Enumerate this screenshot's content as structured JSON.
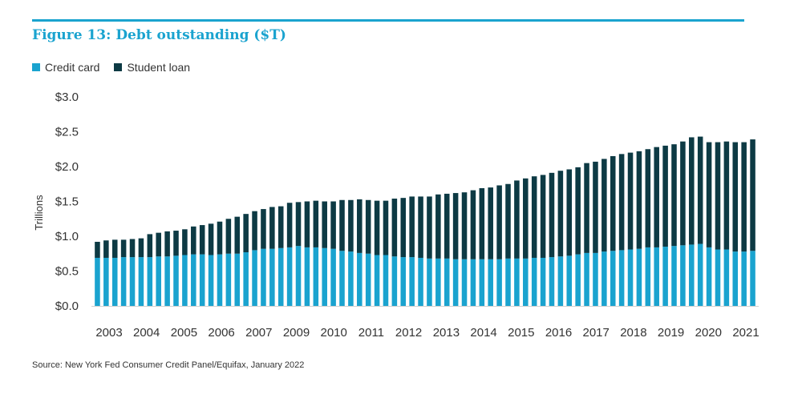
{
  "title": "Figure 13: Debt outstanding ($T)",
  "source": "Source: New York Fed Consumer Credit Panel/Equifax, January 2022",
  "legend": [
    {
      "label": "Credit card",
      "color": "#1aa3cf"
    },
    {
      "label": "Student loan",
      "color": "#0d3a44"
    }
  ],
  "chart_data": {
    "type": "bar",
    "stacked": true,
    "ylabel": "Trillions",
    "ylim": [
      0,
      3.0
    ],
    "yticks": [
      "$0.0",
      "$0.5",
      "$1.0",
      "$1.5",
      "$2.0",
      "$2.5",
      "$3.0"
    ],
    "ytick_values": [
      0,
      0.5,
      1.0,
      1.5,
      2.0,
      2.5,
      3.0
    ],
    "xtick_labels": [
      "2003",
      "2004",
      "2005",
      "2006",
      "2007",
      "2009",
      "2010",
      "2011",
      "2012",
      "2013",
      "2014",
      "2015",
      "2016",
      "2017",
      "2018",
      "2019",
      "2020",
      "2021"
    ],
    "categories": [
      "2003Q1",
      "2003Q2",
      "2003Q3",
      "2003Q4",
      "2004Q1",
      "2004Q2",
      "2004Q3",
      "2004Q4",
      "2005Q1",
      "2005Q2",
      "2005Q3",
      "2005Q4",
      "2006Q1",
      "2006Q2",
      "2006Q3",
      "2006Q4",
      "2007Q1",
      "2007Q2",
      "2007Q3",
      "2007Q4",
      "2008Q1",
      "2008Q2",
      "2008Q3",
      "2008Q4",
      "2009Q1",
      "2009Q2",
      "2009Q3",
      "2009Q4",
      "2010Q1",
      "2010Q2",
      "2010Q3",
      "2010Q4",
      "2011Q1",
      "2011Q2",
      "2011Q3",
      "2011Q4",
      "2012Q1",
      "2012Q2",
      "2012Q3",
      "2012Q4",
      "2013Q1",
      "2013Q2",
      "2013Q3",
      "2013Q4",
      "2014Q1",
      "2014Q2",
      "2014Q3",
      "2014Q4",
      "2015Q1",
      "2015Q2",
      "2015Q3",
      "2015Q4",
      "2016Q1",
      "2016Q2",
      "2016Q3",
      "2016Q4",
      "2017Q1",
      "2017Q2",
      "2017Q3",
      "2017Q4",
      "2018Q1",
      "2018Q2",
      "2018Q3",
      "2018Q4",
      "2019Q1",
      "2019Q2",
      "2019Q3",
      "2019Q4",
      "2020Q1",
      "2020Q2",
      "2020Q3",
      "2020Q4",
      "2021Q1",
      "2021Q2",
      "2021Q3",
      "2021Q4"
    ],
    "series": [
      {
        "name": "Credit card",
        "color": "#1aa3cf",
        "values": [
          0.69,
          0.69,
          0.69,
          0.7,
          0.7,
          0.7,
          0.7,
          0.71,
          0.71,
          0.72,
          0.73,
          0.74,
          0.74,
          0.73,
          0.74,
          0.75,
          0.75,
          0.77,
          0.8,
          0.82,
          0.82,
          0.83,
          0.84,
          0.86,
          0.84,
          0.84,
          0.83,
          0.82,
          0.79,
          0.78,
          0.76,
          0.75,
          0.73,
          0.73,
          0.71,
          0.7,
          0.7,
          0.69,
          0.68,
          0.68,
          0.68,
          0.67,
          0.67,
          0.67,
          0.67,
          0.67,
          0.67,
          0.68,
          0.68,
          0.68,
          0.69,
          0.69,
          0.7,
          0.71,
          0.72,
          0.74,
          0.76,
          0.76,
          0.78,
          0.79,
          0.8,
          0.81,
          0.82,
          0.84,
          0.84,
          0.85,
          0.86,
          0.87,
          0.88,
          0.89,
          0.84,
          0.81,
          0.81,
          0.78,
          0.78,
          0.79
        ]
      },
      {
        "name": "Student loan",
        "color": "#0d3a44",
        "values": [
          0.23,
          0.25,
          0.26,
          0.25,
          0.26,
          0.27,
          0.33,
          0.34,
          0.36,
          0.36,
          0.37,
          0.4,
          0.42,
          0.45,
          0.47,
          0.5,
          0.53,
          0.55,
          0.56,
          0.57,
          0.6,
          0.6,
          0.64,
          0.63,
          0.66,
          0.67,
          0.67,
          0.68,
          0.73,
          0.74,
          0.77,
          0.77,
          0.78,
          0.78,
          0.83,
          0.85,
          0.87,
          0.88,
          0.89,
          0.92,
          0.93,
          0.95,
          0.96,
          0.99,
          1.02,
          1.03,
          1.06,
          1.07,
          1.12,
          1.15,
          1.17,
          1.19,
          1.21,
          1.23,
          1.24,
          1.25,
          1.29,
          1.31,
          1.33,
          1.36,
          1.38,
          1.39,
          1.4,
          1.41,
          1.44,
          1.45,
          1.46,
          1.49,
          1.54,
          1.54,
          1.51,
          1.54,
          1.55,
          1.57,
          1.57,
          1.6
        ]
      }
    ]
  }
}
